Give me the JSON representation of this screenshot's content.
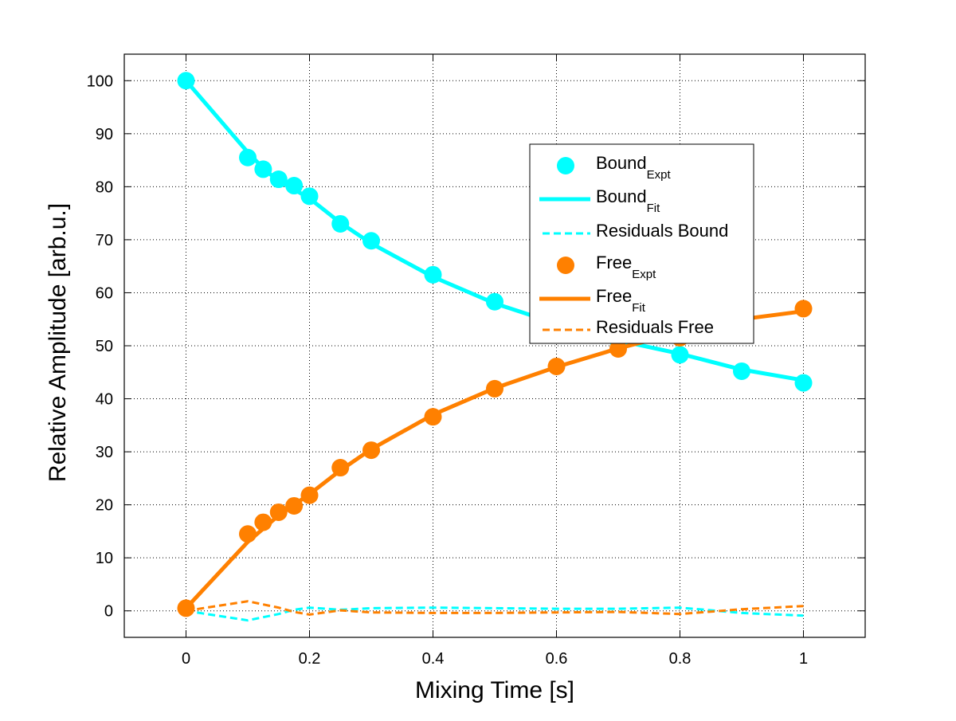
{
  "chart_data": {
    "type": "line",
    "title": "",
    "xlabel": "Mixing Time [s]",
    "ylabel": "Relative Amplitude [arb.u.]",
    "xlim": [
      -0.1,
      1.1
    ],
    "ylim": [
      -5,
      105
    ],
    "xticks": [
      0,
      0.2,
      0.4,
      0.6,
      0.8,
      1
    ],
    "xtick_labels": [
      "0",
      "0.2",
      "0.4",
      "0.6",
      "0.8",
      "1"
    ],
    "yticks": [
      0,
      10,
      20,
      30,
      40,
      50,
      60,
      70,
      80,
      90,
      100
    ],
    "ytick_labels": [
      "0",
      "10",
      "20",
      "30",
      "40",
      "50",
      "60",
      "70",
      "80",
      "90",
      "100"
    ],
    "grid": true,
    "legend_position": "center-right",
    "x": [
      0,
      0.1,
      0.125,
      0.15,
      0.175,
      0.2,
      0.25,
      0.3,
      0.4,
      0.5,
      0.6,
      0.7,
      0.8,
      0.9,
      1.0
    ],
    "series": [
      {
        "name": "Bound_Expt",
        "label_main": "Bound",
        "label_sub": "Expt",
        "style": "markers",
        "color": "#00FFFF",
        "values": [
          100,
          85.5,
          83.3,
          81.4,
          80.2,
          78.2,
          73.0,
          69.8,
          63.4,
          58.3,
          54.5,
          51.0,
          48.3,
          45.2,
          43.0
        ]
      },
      {
        "name": "Bound_Fit",
        "label_main": "Bound",
        "label_sub": "Fit",
        "style": "solid",
        "color": "#00FFFF",
        "values": [
          100,
          86.5,
          83.5,
          81.0,
          79.5,
          77.8,
          73.2,
          69.3,
          63.0,
          58.0,
          54.2,
          51.0,
          48.5,
          45.5,
          43.5
        ]
      },
      {
        "name": "Residuals Bound",
        "label_main": "Residuals Bound",
        "label_sub": "",
        "style": "dashed",
        "color": "#00FFFF",
        "values": [
          0,
          -1.8,
          -1.2,
          -0.6,
          0.2,
          0.6,
          0.2,
          0.5,
          0.6,
          0.5,
          0.4,
          0.4,
          0.6,
          -0.4,
          -0.9
        ]
      },
      {
        "name": "Free_Expt",
        "label_main": "Free",
        "label_sub": "Expt",
        "style": "markers",
        "color": "#FF8000",
        "values": [
          0.5,
          14.5,
          16.7,
          18.6,
          19.8,
          21.8,
          27.0,
          30.3,
          36.6,
          41.9,
          46.1,
          49.4,
          51.5,
          54.0,
          57.0
        ]
      },
      {
        "name": "Free_Fit",
        "label_main": "Free",
        "label_sub": "Fit",
        "style": "solid",
        "color": "#FF8000",
        "values": [
          0.5,
          13.0,
          15.5,
          18.0,
          20.0,
          22.0,
          26.5,
          30.5,
          37.0,
          42.0,
          46.0,
          49.5,
          52.5,
          55.0,
          56.5
        ]
      },
      {
        "name": "Residuals Free",
        "label_main": "Residuals Free",
        "label_sub": "",
        "style": "dashed",
        "color": "#FF8000",
        "values": [
          0,
          1.8,
          1.2,
          0.6,
          -0.2,
          -0.7,
          0.1,
          -0.3,
          -0.4,
          -0.4,
          -0.3,
          -0.2,
          -0.6,
          0.3,
          0.9
        ]
      }
    ]
  }
}
